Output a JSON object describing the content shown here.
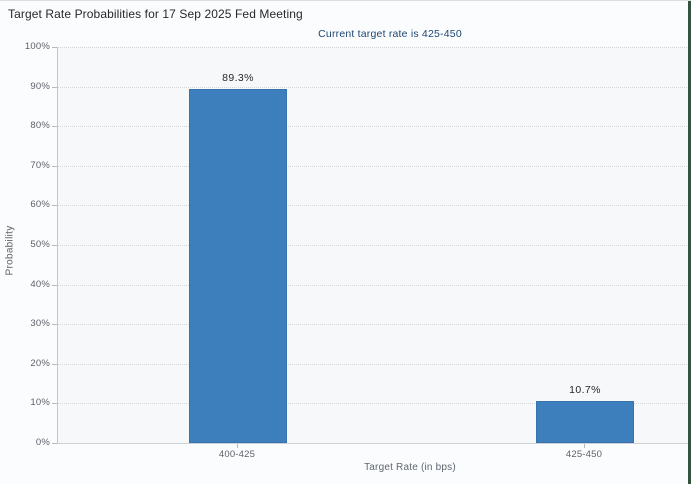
{
  "chart_data": {
    "type": "bar",
    "title": "Target Rate Probabilities for 17 Sep 2025 Fed Meeting",
    "subtitle": "Current target rate is 425-450",
    "categories": [
      "400-425",
      "425-450"
    ],
    "values": [
      89.3,
      10.7
    ],
    "value_labels": [
      "89.3%",
      "10.7%"
    ],
    "xlabel": "Target Rate (in bps)",
    "ylabel": "Probability",
    "ylim": [
      0,
      100
    ],
    "ytick_step": 10,
    "ytick_labels": [
      "0%",
      "10%",
      "20%",
      "30%",
      "40%",
      "50%",
      "60%",
      "70%",
      "80%",
      "90%",
      "100%"
    ],
    "grid": "horizontal-dotted",
    "legend": "none",
    "colors": {
      "bar": "#3d7fbc",
      "bar_border": "#3873ad",
      "title": "#26282b",
      "subtitle": "#1d4671",
      "axis_text": "#5c6169",
      "gridline": "#d2d5da",
      "window_edge_green": "#35523f"
    }
  }
}
